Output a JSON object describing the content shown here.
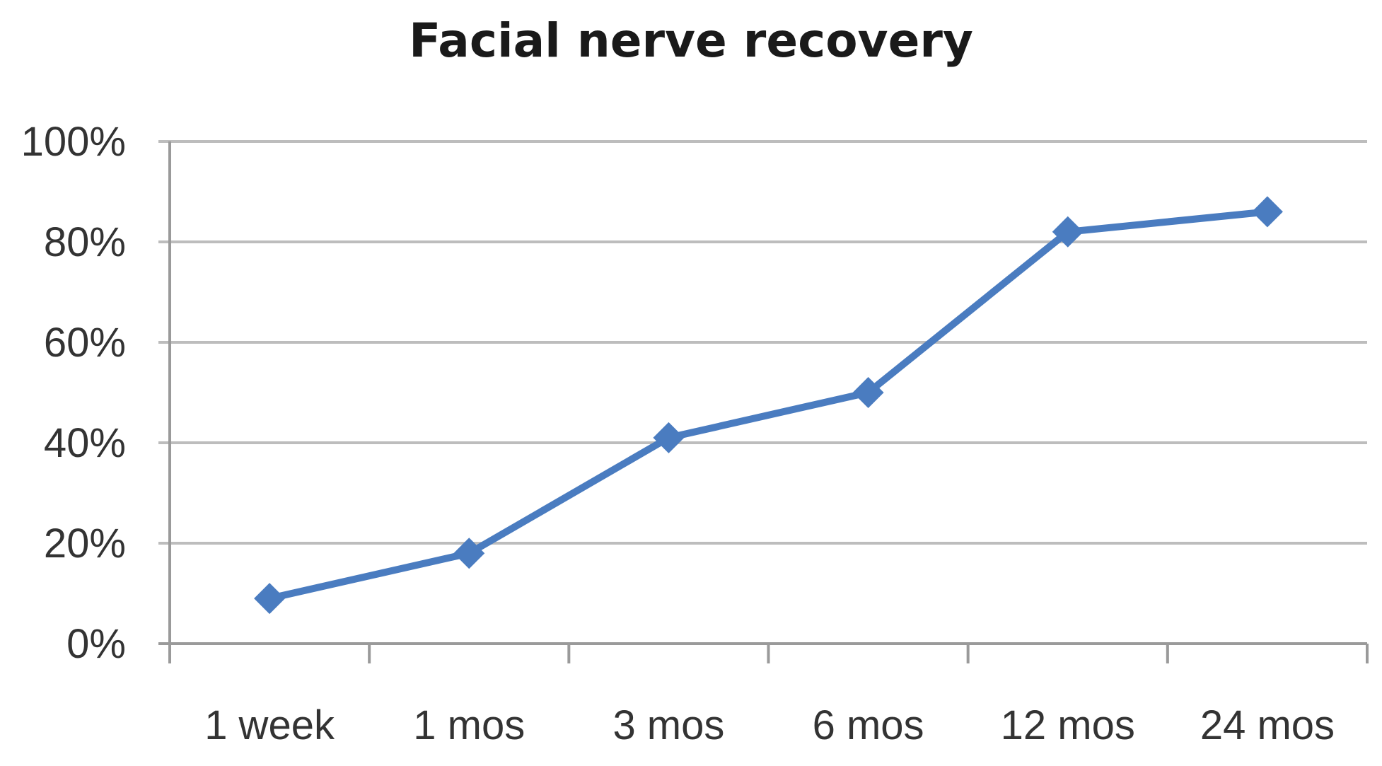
{
  "chart_data": {
    "type": "line",
    "title": "Facial nerve recovery",
    "xlabel": "",
    "ylabel": "",
    "categories": [
      "1 week",
      "1 mos",
      "3 mos",
      "6 mos",
      "12 mos",
      "24 mos"
    ],
    "series": [
      {
        "values": [
          9,
          18,
          41,
          50,
          82,
          86
        ]
      }
    ],
    "ylim": [
      0,
      100
    ],
    "yticks": [
      0,
      20,
      40,
      60,
      80,
      100
    ],
    "ytick_labels": [
      "0%",
      "20%",
      "40%",
      "60%",
      "80%",
      "100%"
    ],
    "grid": true,
    "legend": "none",
    "marker": "diamond",
    "colors": {
      "series": "#4a7cc0",
      "grid": "#bdbdbd",
      "axis": "#9a9a9a",
      "text": "#333333"
    }
  }
}
